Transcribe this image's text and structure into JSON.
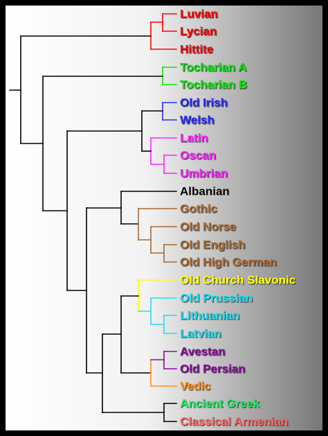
{
  "leaves": [
    {
      "label": "Luvian",
      "color": "#ff0000"
    },
    {
      "label": "Lycian",
      "color": "#ff0000"
    },
    {
      "label": "Hittite",
      "color": "#ff0000"
    },
    {
      "label": "Tocharian A",
      "color": "#00ee00"
    },
    {
      "label": "Tocharian B",
      "color": "#00ee00"
    },
    {
      "label": "Old Irish",
      "color": "#2a2aff"
    },
    {
      "label": "Welsh",
      "color": "#2a2aff"
    },
    {
      "label": "Latin",
      "color": "#ff22ff"
    },
    {
      "label": "Oscan",
      "color": "#ff22ff"
    },
    {
      "label": "Umbrian",
      "color": "#ff22ff"
    },
    {
      "label": "Albanian",
      "color": "#000000"
    },
    {
      "label": "Gothic",
      "color": "#a86a30"
    },
    {
      "label": "Old Norse",
      "color": "#a86a30"
    },
    {
      "label": "Old English",
      "color": "#a86a30"
    },
    {
      "label": "Old High German",
      "color": "#a86a30"
    },
    {
      "label": "Old Church Slavonic",
      "color": "#ffff00"
    },
    {
      "label": "Old Prussian",
      "color": "#22ddee"
    },
    {
      "label": "Lithuanian",
      "color": "#22ddee"
    },
    {
      "label": "Latvian",
      "color": "#22ddee"
    },
    {
      "label": "Avestan",
      "color": "#8a0a9a"
    },
    {
      "label": "Old Persian",
      "color": "#8a0a9a"
    },
    {
      "label": "Vedic",
      "color": "#ff8c1a"
    },
    {
      "label": "Ancient Greek",
      "color": "#22ee66"
    },
    {
      "label": "Classical Armenian",
      "color": "#ff6666"
    }
  ]
}
